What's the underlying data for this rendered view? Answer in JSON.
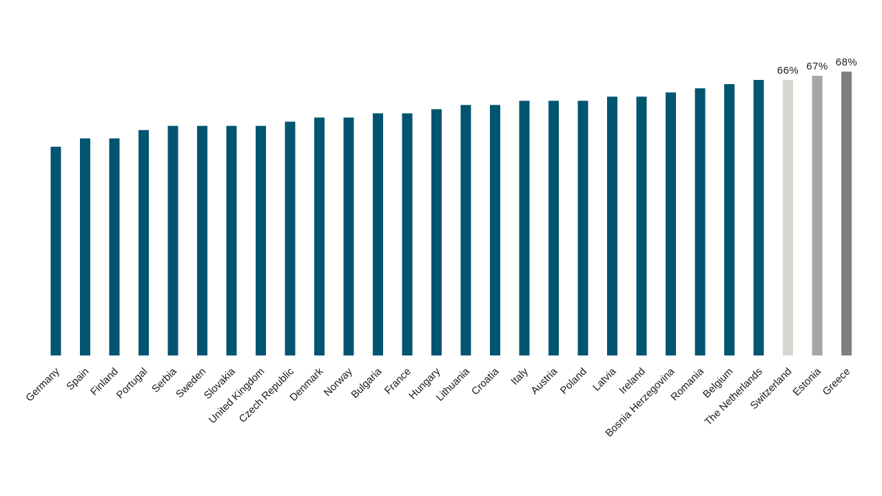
{
  "chart_data": {
    "type": "bar",
    "categories": [
      "Germany",
      "Spain",
      "Finland",
      "Portugal",
      "Serbia",
      "Sweden",
      "Slovakia",
      "United Kingdom",
      "Czech Republic",
      "Denmark",
      "Norway",
      "Bulgaria",
      "France",
      "Hungary",
      "Lithuania",
      "Croatia",
      "Italy",
      "Austria",
      "Poland",
      "Latvia",
      "Ireland",
      "Bosnia Herzegovina",
      "Romania",
      "Belgium",
      "The Netherlands",
      "Switzerland",
      "Estonia",
      "Greece"
    ],
    "values": [
      50,
      52,
      52,
      54,
      55,
      55,
      55,
      55,
      56,
      57,
      57,
      58,
      58,
      59,
      60,
      60,
      61,
      61,
      61,
      62,
      62,
      63,
      64,
      65,
      66,
      66,
      67,
      68
    ],
    "data_labels": [
      "",
      "",
      "",
      "",
      "",
      "",
      "",
      "",
      "",
      "",
      "",
      "",
      "",
      "",
      "",
      "",
      "",
      "",
      "",
      "",
      "",
      "",
      "",
      "",
      "",
      "66%",
      "67%",
      "68%"
    ],
    "colors": [
      "#005570",
      "#005570",
      "#005570",
      "#005570",
      "#005570",
      "#005570",
      "#005570",
      "#005570",
      "#005570",
      "#005570",
      "#005570",
      "#005570",
      "#005570",
      "#005570",
      "#005570",
      "#005570",
      "#005570",
      "#005570",
      "#005570",
      "#005570",
      "#005570",
      "#005570",
      "#005570",
      "#005570",
      "#005570",
      "#d9d6d2",
      "#a6a6a6",
      "#7f7f7f"
    ],
    "title": "",
    "xlabel": "",
    "ylabel": "",
    "ylim": [
      0,
      70
    ],
    "grid": false,
    "legend": "none"
  }
}
